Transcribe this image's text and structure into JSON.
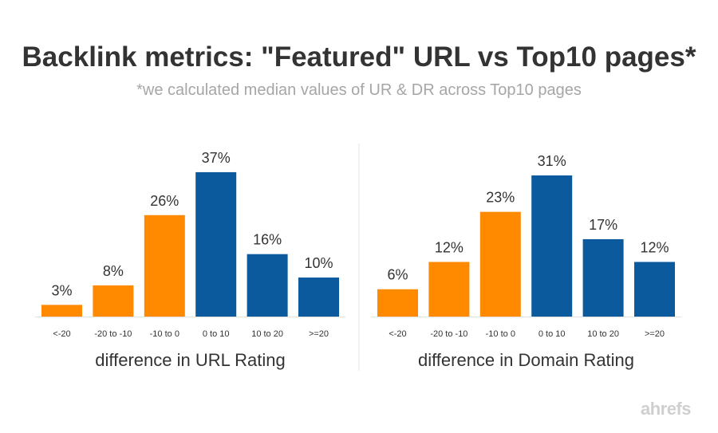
{
  "title": "Backlink metrics: \"Featured\" URL vs Top10 pages*",
  "subtitle": "*we calculated median values of UR & DR across Top10 pages",
  "logo": "ahrefs",
  "colors": {
    "negative": "#FF8A00",
    "positive": "#0B5A9E"
  },
  "chart_data": [
    {
      "type": "bar",
      "categories": [
        "<-20",
        "-20 to -10",
        "-10 to 0",
        "0 to 10",
        "10 to 20",
        ">=20"
      ],
      "values": [
        3,
        8,
        26,
        37,
        16,
        10
      ],
      "data_labels": [
        "3%",
        "8%",
        "26%",
        "37%",
        "16%",
        "10%"
      ],
      "xlabel": "difference in URL Rating",
      "ylim": [
        0,
        37.8
      ],
      "grid": false
    },
    {
      "type": "bar",
      "categories": [
        "<-20",
        "-20 to -10",
        "-10 to 0",
        "0 to 10",
        "10 to 20",
        ">=20"
      ],
      "values": [
        6,
        12,
        23,
        31,
        17,
        12
      ],
      "data_labels": [
        "6%",
        "12%",
        "23%",
        "31%",
        "17%",
        "12%"
      ],
      "xlabel": "difference in Domain Rating",
      "ylim": [
        0,
        32.4
      ],
      "grid": false
    }
  ]
}
